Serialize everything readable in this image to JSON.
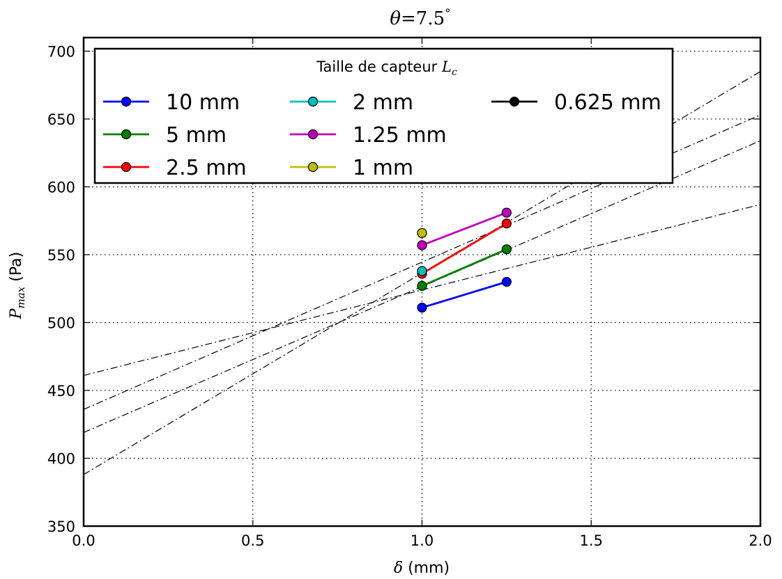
{
  "chart_data": {
    "type": "line",
    "title": {
      "symbol": "θ",
      "equals": "=",
      "value": "7.5",
      "degree": "°"
    },
    "xlabel": {
      "symbol": "δ",
      "rest": " (mm)"
    },
    "ylabel": {
      "symbol": "P",
      "sub": "max",
      "rest": " (Pa)"
    },
    "xlim": [
      0.0,
      2.0
    ],
    "ylim": [
      350,
      710
    ],
    "xticks": [
      0.0,
      0.5,
      1.0,
      1.5,
      2.0
    ],
    "xtick_labels": [
      "0.0",
      "0.5",
      "1.0",
      "1.5",
      "2.0"
    ],
    "yticks": [
      350,
      400,
      450,
      500,
      550,
      600,
      650,
      700
    ],
    "ytick_labels": [
      "350",
      "400",
      "450",
      "500",
      "550",
      "600",
      "650",
      "700"
    ],
    "grid": true,
    "legend": {
      "title": "Taille de capteur",
      "title_symbol": "L",
      "title_sub": "c",
      "placement": "top-left",
      "columns": 3
    },
    "series": [
      {
        "name": "10 mm",
        "color": "#0000ff",
        "x": [
          1.0,
          1.25
        ],
        "y": [
          511,
          530
        ]
      },
      {
        "name": "5 mm",
        "color": "#008000",
        "x": [
          1.0,
          1.25
        ],
        "y": [
          527,
          554
        ]
      },
      {
        "name": "2.5 mm",
        "color": "#ff0000",
        "x": [
          1.0,
          1.25
        ],
        "y": [
          536,
          573
        ]
      },
      {
        "name": "2 mm",
        "color": "#00bfbf",
        "x": [
          1.0
        ],
        "y": [
          538
        ]
      },
      {
        "name": "1.25 mm",
        "color": "#bf00bf",
        "x": [
          1.0,
          1.25
        ],
        "y": [
          557,
          581
        ]
      },
      {
        "name": "1 mm",
        "color": "#bfbf00",
        "x": [
          1.0
        ],
        "y": [
          566
        ]
      },
      {
        "name": "0.625 mm",
        "color": "#000000",
        "x": [],
        "y": []
      }
    ],
    "fit_lines": [
      {
        "x": [
          0.0,
          2.0
        ],
        "y": [
          461,
          587
        ]
      },
      {
        "x": [
          0.0,
          2.0
        ],
        "y": [
          436,
          653
        ]
      },
      {
        "x": [
          0.0,
          2.0
        ],
        "y": [
          419,
          634
        ]
      },
      {
        "x": [
          0.0,
          2.0
        ],
        "y": [
          388,
          685
        ]
      }
    ]
  }
}
